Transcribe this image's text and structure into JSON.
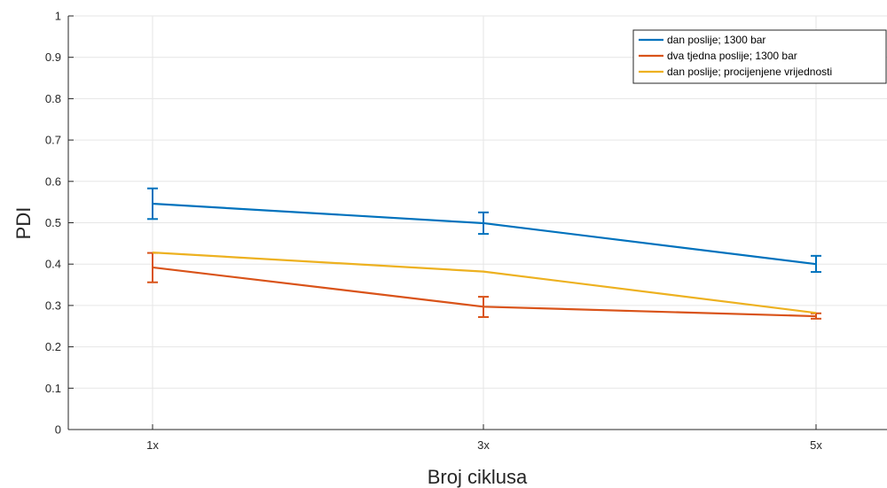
{
  "chart_data": {
    "type": "line",
    "title": "",
    "xlabel": "Broj ciklusa",
    "ylabel": "PDI",
    "categories": [
      "1x",
      "3x",
      "5x"
    ],
    "ylim": [
      0,
      1
    ],
    "yticks": [
      "0",
      "0.1",
      "0.2",
      "0.3",
      "0.4",
      "0.5",
      "0.6",
      "0.7",
      "0.8",
      "0.9",
      "1"
    ],
    "grid": true,
    "legend_position": "top-right",
    "series": [
      {
        "name": "dan poslije; 1300 bar",
        "color": "#0072BD",
        "values": [
          0.546,
          0.499,
          0.4
        ],
        "err_low": [
          0.509,
          0.473,
          0.381
        ],
        "err_high": [
          0.583,
          0.525,
          0.42
        ]
      },
      {
        "name": "dva tjedna poslije; 1300 bar",
        "color": "#D95319",
        "values": [
          0.392,
          0.297,
          0.274
        ],
        "err_low": [
          0.356,
          0.272,
          0.268
        ],
        "err_high": [
          0.427,
          0.321,
          0.281
        ]
      },
      {
        "name": "dan poslije; procijenjene vrijednosti",
        "color": "#EDB120",
        "values": [
          0.428,
          0.382,
          0.282
        ]
      }
    ]
  }
}
